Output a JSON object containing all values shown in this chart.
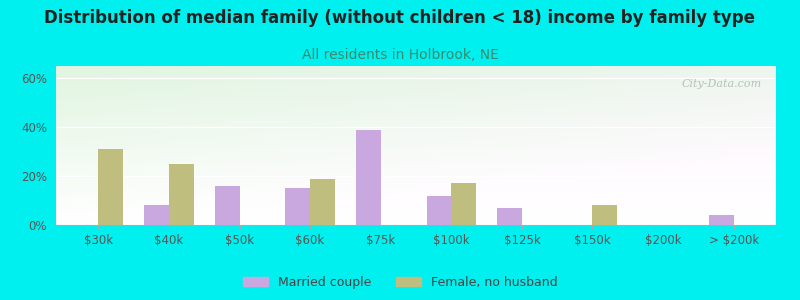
{
  "title": "Distribution of median family (without children < 18) income by family type",
  "subtitle": "All residents in Holbrook, NE",
  "categories": [
    "$30k",
    "$40k",
    "$50k",
    "$60k",
    "$75k",
    "$100k",
    "$125k",
    "$150k",
    "$200k",
    "> $200k"
  ],
  "married_couple": [
    0,
    8,
    16,
    15,
    39,
    12,
    7,
    0,
    0,
    4
  ],
  "female_no_husband": [
    31,
    25,
    0,
    19,
    0,
    17,
    0,
    8,
    0,
    0
  ],
  "married_color": "#c9a8e0",
  "female_color": "#bfbe7e",
  "title_color": "#222222",
  "subtitle_color": "#3a8a6e",
  "bg_outer": "#00f0f0",
  "ylim": [
    0,
    65
  ],
  "yticks": [
    0,
    20,
    40,
    60
  ],
  "ytick_labels": [
    "0%",
    "20%",
    "40%",
    "60%"
  ],
  "bar_width": 0.35,
  "title_fontsize": 12,
  "subtitle_fontsize": 10,
  "tick_fontsize": 8.5,
  "legend_fontsize": 9,
  "watermark": "City-Data.com"
}
